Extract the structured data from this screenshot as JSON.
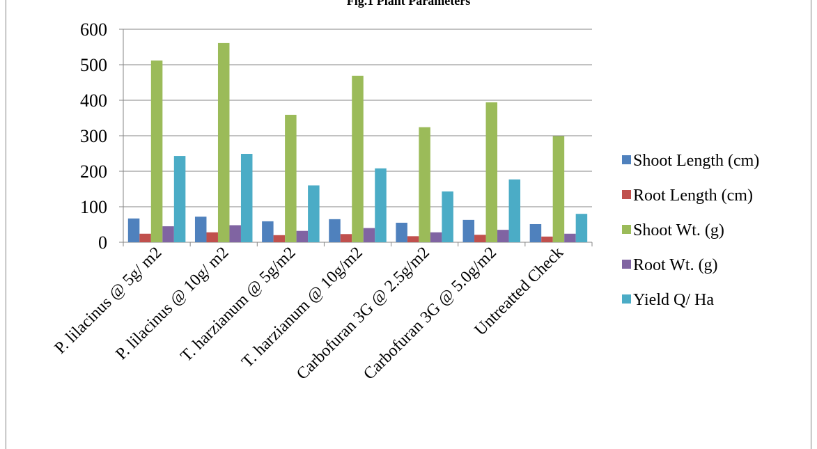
{
  "chart_data": {
    "type": "bar",
    "title": "Fig.1 Plant Parameters",
    "xlabel": "",
    "ylabel": "",
    "ylim": [
      0,
      600
    ],
    "yticks": [
      0,
      100,
      200,
      300,
      400,
      500,
      600
    ],
    "grid": true,
    "legend_position": "right",
    "categories": [
      "P. lilacinus @ 5g/ m2",
      "P. lilacinus @ 10g/ m2",
      "T. harzianum @ 5g/m2",
      "T. harzianum @ 10g/m2",
      "Carbofuran 3G @ 2.5g/m2",
      "Carbofuran 3G @ 5.0g/m2",
      "Untreatted Check"
    ],
    "series": [
      {
        "name": "Shoot Length (cm)",
        "color": "#4f81bd",
        "values": [
          67,
          72,
          59,
          65,
          55,
          63,
          51
        ]
      },
      {
        "name": "Root Length (cm)",
        "color": "#c0504d",
        "values": [
          24,
          28,
          20,
          23,
          17,
          21,
          16
        ]
      },
      {
        "name": "Shoot Wt. (g)",
        "color": "#9bbb59",
        "values": [
          512,
          561,
          359,
          469,
          324,
          394,
          299
        ]
      },
      {
        "name": "Root Wt. (g)",
        "color": "#8064a2",
        "values": [
          45,
          48,
          32,
          40,
          28,
          35,
          24
        ]
      },
      {
        "name": "Yield Q/ Ha",
        "color": "#4bacc6",
        "values": [
          243,
          249,
          160,
          208,
          143,
          177,
          80
        ]
      }
    ]
  }
}
